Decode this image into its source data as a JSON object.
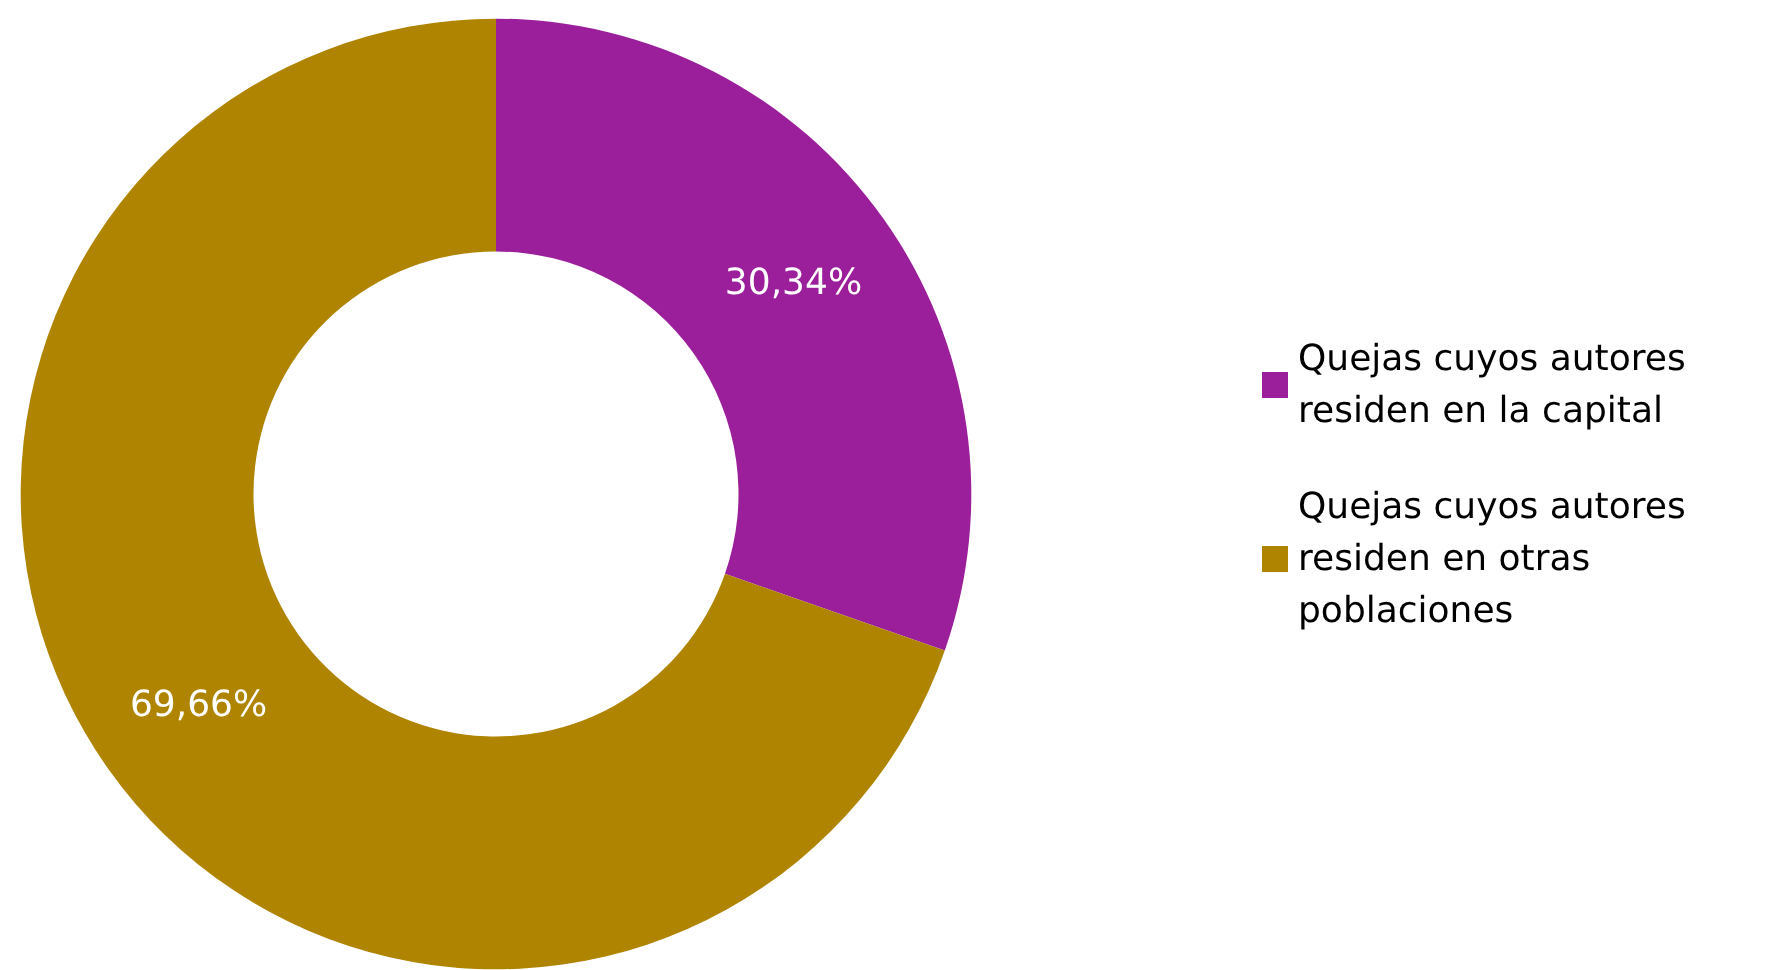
{
  "chart_data": {
    "type": "donut",
    "categories": [
      "Quejas cuyos autores residen en la capital",
      "Quejas cuyos autores residen en otras poblaciones"
    ],
    "values": [
      30.34,
      69.66
    ],
    "value_labels": [
      "30,34%",
      "69,66%"
    ],
    "colors": [
      "#9b1f9b",
      "#ae8400"
    ],
    "legend": "right"
  }
}
